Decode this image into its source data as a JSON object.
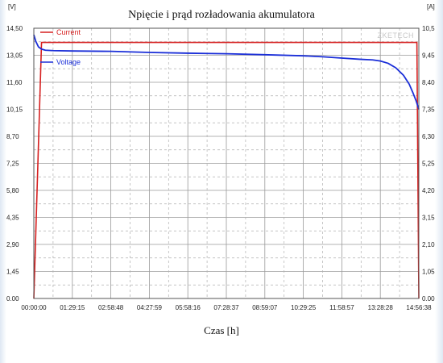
{
  "chart_data": {
    "type": "line",
    "title": "Npięcie i prąd rozładowania akumulatora",
    "xlabel": "Czas [h]",
    "left_unit": "[V]",
    "right_unit": "[A]",
    "watermark": "ZKETECH",
    "x_ticks": [
      "00:00:00",
      "01:29:15",
      "02:58:48",
      "04:27:59",
      "05:58:16",
      "07:28:37",
      "08:59:07",
      "10:29:25",
      "11:58:57",
      "13:28:28",
      "14:56:38"
    ],
    "y_left_ticks": [
      "0.00",
      "1,45",
      "2,90",
      "4,35",
      "5,80",
      "7,25",
      "8,70",
      "10,15",
      "11,60",
      "13,05",
      "14,50"
    ],
    "y_right_ticks": [
      "0.00",
      "1,05",
      "2,10",
      "3,15",
      "4,20",
      "5,25",
      "6,30",
      "7,35",
      "8,40",
      "9,45",
      "10,5"
    ],
    "y_left_lim": [
      0,
      14.5
    ],
    "y_right_lim": [
      0,
      10.5
    ],
    "grid": true,
    "legend_placement": "top-left",
    "series": [
      {
        "name": "Current",
        "axis": "right",
        "color": "#d62020",
        "points": [
          [
            0,
            0.0
          ],
          [
            0.02,
            9.95
          ],
          [
            0.05,
            9.95
          ],
          [
            0.2,
            9.95
          ],
          [
            0.4,
            9.95
          ],
          [
            0.6,
            9.95
          ],
          [
            0.8,
            9.95
          ],
          [
            0.98,
            9.95
          ],
          [
            0.995,
            9.95
          ],
          [
            1.0,
            0.0
          ]
        ]
      },
      {
        "name": "Voltage",
        "axis": "left",
        "color": "#1a2ed8",
        "points": [
          [
            0.0,
            14.15
          ],
          [
            0.005,
            13.8
          ],
          [
            0.012,
            13.5
          ],
          [
            0.02,
            13.38
          ],
          [
            0.03,
            13.32
          ],
          [
            0.05,
            13.3
          ],
          [
            0.1,
            13.28
          ],
          [
            0.2,
            13.26
          ],
          [
            0.3,
            13.2
          ],
          [
            0.4,
            13.16
          ],
          [
            0.5,
            13.13
          ],
          [
            0.6,
            13.08
          ],
          [
            0.7,
            13.02
          ],
          [
            0.75,
            12.97
          ],
          [
            0.8,
            12.9
          ],
          [
            0.85,
            12.83
          ],
          [
            0.88,
            12.8
          ],
          [
            0.9,
            12.74
          ],
          [
            0.92,
            12.62
          ],
          [
            0.94,
            12.38
          ],
          [
            0.96,
            11.98
          ],
          [
            0.975,
            11.5
          ],
          [
            0.985,
            11.02
          ],
          [
            0.993,
            10.6
          ],
          [
            1.0,
            10.15
          ]
        ]
      }
    ],
    "x_units_note": "fraction of total time 00:00:00–14:56:38"
  }
}
